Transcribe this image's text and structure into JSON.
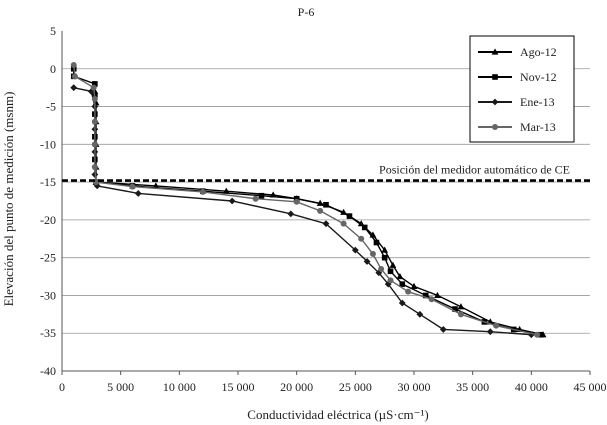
{
  "chart_data": {
    "type": "line",
    "title": "P-6",
    "xlabel": "Conductividad eléctrica (µS·cm⁻¹)",
    "ylabel": "Elevación del punto de medición (msnm)",
    "xlim": [
      0,
      45000
    ],
    "ylim": [
      -40,
      5
    ],
    "x_ticks": [
      "0",
      "5 000",
      "10 000",
      "15 000",
      "20 000",
      "25 000",
      "30 000",
      "35 000",
      "40 000",
      "45 000"
    ],
    "y_ticks": [
      "5",
      "0",
      "-5",
      "-10",
      "-15",
      "-20",
      "-25",
      "-30",
      "-35",
      "-40"
    ],
    "grid": "horizontal",
    "legend_position": "top-right",
    "annotation": {
      "text": "Posición del medidor automático de CE",
      "y": -14.8
    },
    "series": [
      {
        "name": "Ago-12",
        "color": "#000000",
        "marker": "triangle",
        "points": [
          [
            2800,
            -3
          ],
          [
            2900,
            -4.5
          ],
          [
            2900,
            -7
          ],
          [
            2900,
            -10
          ],
          [
            2900,
            -13
          ],
          [
            2900,
            -15
          ],
          [
            8000,
            -15.5
          ],
          [
            14000,
            -16.2
          ],
          [
            18000,
            -16.7
          ],
          [
            20000,
            -17.2
          ],
          [
            22000,
            -17.8
          ],
          [
            24000,
            -19
          ],
          [
            25500,
            -20.5
          ],
          [
            26500,
            -22
          ],
          [
            27500,
            -24
          ],
          [
            28200,
            -26
          ],
          [
            28800,
            -27.5
          ],
          [
            30000,
            -28.8
          ],
          [
            32000,
            -30
          ],
          [
            34000,
            -31.5
          ],
          [
            36500,
            -33.5
          ],
          [
            39000,
            -34.5
          ],
          [
            41000,
            -35.2
          ]
        ]
      },
      {
        "name": "Nov-12",
        "color": "#000000",
        "marker": "square",
        "points": [
          [
            1000,
            0
          ],
          [
            1000,
            -1
          ],
          [
            2800,
            -2
          ],
          [
            2800,
            -3.5
          ],
          [
            2800,
            -6
          ],
          [
            2800,
            -9
          ],
          [
            2800,
            -12
          ],
          [
            2900,
            -15
          ],
          [
            6000,
            -15.5
          ],
          [
            12000,
            -16.2
          ],
          [
            17000,
            -16.8
          ],
          [
            20000,
            -17.2
          ],
          [
            22500,
            -18
          ],
          [
            24500,
            -19.5
          ],
          [
            25800,
            -21
          ],
          [
            26800,
            -23
          ],
          [
            27500,
            -25
          ],
          [
            28000,
            -26.8
          ],
          [
            29000,
            -28.5
          ],
          [
            31000,
            -30
          ],
          [
            33500,
            -31.8
          ],
          [
            36000,
            -33.5
          ],
          [
            38500,
            -34.5
          ],
          [
            40800,
            -35.2
          ]
        ]
      },
      {
        "name": "Ene-13",
        "color": "#1a1a1a",
        "marker": "diamond",
        "points": [
          [
            1000,
            -2.5
          ],
          [
            2500,
            -3
          ],
          [
            2800,
            -5
          ],
          [
            2800,
            -8
          ],
          [
            2800,
            -11
          ],
          [
            2800,
            -14
          ],
          [
            3000,
            -15.5
          ],
          [
            6500,
            -16.5
          ],
          [
            14500,
            -17.5
          ],
          [
            19500,
            -19.2
          ],
          [
            22500,
            -20.5
          ],
          [
            25000,
            -24
          ],
          [
            26000,
            -25.5
          ],
          [
            27000,
            -27
          ],
          [
            27800,
            -28.5
          ],
          [
            29000,
            -31
          ],
          [
            30500,
            -32.5
          ],
          [
            32500,
            -34.5
          ],
          [
            36500,
            -34.8
          ],
          [
            40000,
            -35.2
          ]
        ]
      },
      {
        "name": "Mar-13",
        "color": "#666666",
        "marker": "circle",
        "points": [
          [
            1000,
            0.5
          ],
          [
            1100,
            -1
          ],
          [
            2700,
            -2.5
          ],
          [
            2800,
            -4
          ],
          [
            2800,
            -7
          ],
          [
            2800,
            -10
          ],
          [
            2800,
            -13
          ],
          [
            2900,
            -15
          ],
          [
            6000,
            -15.6
          ],
          [
            12000,
            -16.3
          ],
          [
            16500,
            -17.2
          ],
          [
            20000,
            -17.6
          ],
          [
            22000,
            -18.8
          ],
          [
            24000,
            -20.5
          ],
          [
            25500,
            -22.5
          ],
          [
            26500,
            -24.5
          ],
          [
            27200,
            -26.5
          ],
          [
            28000,
            -28
          ],
          [
            29500,
            -29.5
          ],
          [
            31500,
            -30.5
          ],
          [
            34000,
            -32.5
          ],
          [
            37000,
            -34
          ],
          [
            40500,
            -35.2
          ]
        ]
      }
    ]
  }
}
